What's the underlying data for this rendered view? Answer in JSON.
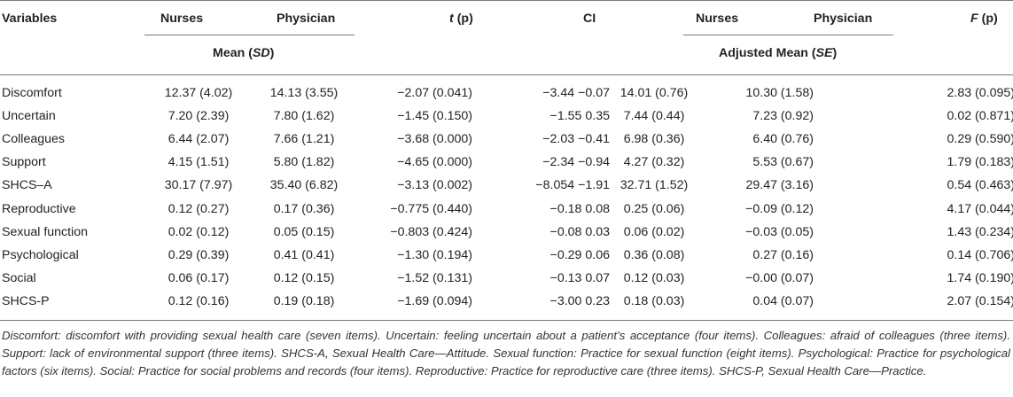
{
  "headers": {
    "variables": "Variables",
    "nurses": "Nurses",
    "physician": "Physician",
    "t_p": "(p)",
    "t_letter": "t",
    "ci": "CI",
    "nurses2": "Nurses",
    "physician2": "Physician",
    "f_letter": "F",
    "f_p": "(p)",
    "group1_pre": "Mean (",
    "group1_sd": "SD",
    "group1_post": ")",
    "group2_pre": "Adjusted Mean (",
    "group2_se": "SE",
    "group2_post": ")"
  },
  "rows": [
    {
      "variable": "Discomfort",
      "nurses": "12.37 (4.02)",
      "physician": "14.13 (3.55)",
      "t": "−2.07 (0.041)",
      "ci": "−3.44 −0.07",
      "adj_nurses": "14.01 (0.76)",
      "adj_physician": "10.30 (1.58)",
      "f": "2.83 (0.095)"
    },
    {
      "variable": "Uncertain",
      "nurses": "7.20 (2.39)",
      "physician": "7.80 (1.62)",
      "t": "−1.45 (0.150)",
      "ci": "−1.55 0.35",
      "adj_nurses": "7.44 (0.44)",
      "adj_physician": "7.23 (0.92)",
      "f": "0.02 (0.871)"
    },
    {
      "variable": "Colleagues",
      "nurses": "6.44 (2.07)",
      "physician": "7.66 (1.21)",
      "t": "−3.68 (0.000)",
      "ci": "−2.03 −0.41",
      "adj_nurses": "6.98 (0.36)",
      "adj_physician": "6.40 (0.76)",
      "f": "0.29 (0.590)"
    },
    {
      "variable": "Support",
      "nurses": "4.15 (1.51)",
      "physician": "5.80 (1.82)",
      "t": "−4.65 (0.000)",
      "ci": "−2.34 −0.94",
      "adj_nurses": "4.27 (0.32)",
      "adj_physician": "5.53 (0.67)",
      "f": "1.79 (0.183)"
    },
    {
      "variable": "SHCS–A",
      "nurses": "30.17 (7.97)",
      "physician": "35.40 (6.82)",
      "t": "−3.13 (0.002)",
      "ci": "−8.054 −1.91",
      "adj_nurses": "32.71 (1.52)",
      "adj_physician": "29.47 (3.16)",
      "f": "0.54 (0.463)"
    },
    {
      "variable": "Reproductive",
      "nurses": "0.12 (0.27)",
      "physician": "0.17 (0.36)",
      "t": "−0.775 (0.440)",
      "ci": "−0.18 0.08",
      "adj_nurses": "0.25 (0.06)",
      "adj_physician": "−0.09 (0.12)",
      "f": "4.17 (0.044)"
    },
    {
      "variable": "Sexual function",
      "nurses": "0.02 (0.12)",
      "physician": "0.05 (0.15)",
      "t": "−0.803 (0.424)",
      "ci": "−0.08 0.03",
      "adj_nurses": "0.06 (0.02)",
      "adj_physician": "−0.03 (0.05)",
      "f": "1.43 (0.234)"
    },
    {
      "variable": "Psychological",
      "nurses": "0.29 (0.39)",
      "physician": "0.41 (0.41)",
      "t": "−1.30 (0.194)",
      "ci": "−0.29 0.06",
      "adj_nurses": "0.36 (0.08)",
      "adj_physician": "0.27 (0.16)",
      "f": "0.14 (0.706)"
    },
    {
      "variable": "Social",
      "nurses": "0.06 (0.17)",
      "physician": "0.12 (0.15)",
      "t": "−1.52 (0.131)",
      "ci": "−0.13 0.07",
      "adj_nurses": "0.12 (0.03)",
      "adj_physician": "−0.00 (0.07)",
      "f": "1.74 (0.190)"
    },
    {
      "variable": "SHCS-P",
      "nurses": "0.12 (0.16)",
      "physician": "0.19 (0.18)",
      "t": "−1.69 (0.094)",
      "ci": "−3.00 0.23",
      "adj_nurses": "0.18 (0.03)",
      "adj_physician": "0.04 (0.07)",
      "f": "2.07 (0.154)"
    }
  ],
  "footnote": "Discomfort: discomfort with providing sexual health care (seven items). Uncertain: feeling uncertain about a patient’s acceptance (four items). Colleagues: afraid of colleagues (three items). Support: lack of environmental support (three items). SHCS-A, Sexual Health Care—Attitude. Sexual function: Practice for sexual function (eight items). Psychological: Practice for psychological factors (six items). Social: Practice for social problems and records (four items). Reproductive: Practice for reproductive care (three items). SHCS-P, Sexual Health Care—Practice."
}
